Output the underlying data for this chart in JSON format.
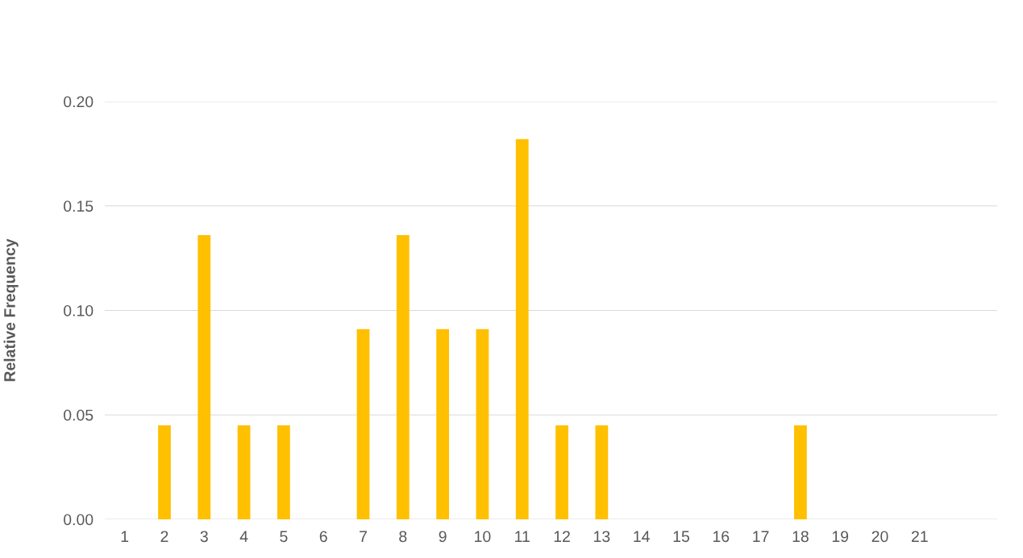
{
  "chart_data": {
    "type": "bar",
    "ylabel": "Relative Frequency",
    "categories": [
      "1",
      "2",
      "3",
      "4",
      "5",
      "6",
      "7",
      "8",
      "9",
      "10",
      "11",
      "12",
      "13",
      "14",
      "15",
      "16",
      "17",
      "18",
      "19",
      "20",
      "21"
    ],
    "values": [
      0,
      0.045,
      0.136,
      0.045,
      0.045,
      0,
      0.091,
      0.136,
      0.091,
      0.091,
      0.182,
      0.045,
      0.045,
      0,
      0,
      0,
      0,
      0.045,
      0,
      0,
      0
    ],
    "color": "#ffc000",
    "ylim": [
      0,
      0.2
    ],
    "yticks": [
      {
        "value": 0,
        "label": "0.00"
      },
      {
        "value": 0.05,
        "label": "0.05"
      },
      {
        "value": 0.1,
        "label": "0.10"
      },
      {
        "value": 0.15,
        "label": "0.15"
      },
      {
        "value": 0.2,
        "label": "0.20"
      }
    ],
    "grid": "y",
    "legend": false
  }
}
